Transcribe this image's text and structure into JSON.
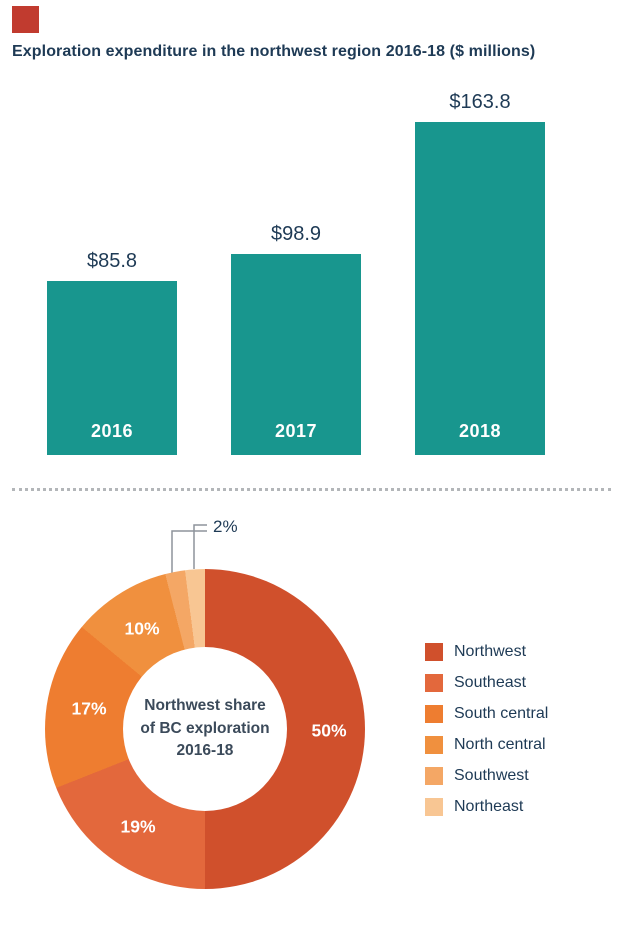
{
  "brand": {
    "logo_color": "#c13b2f",
    "navy": "#1e3a55",
    "teal": "#18968e"
  },
  "title": "Exploration expenditure in the northwest region 2016-18 ($ millions)",
  "chart_data": [
    {
      "type": "bar",
      "title": "Exploration expenditure in the northwest region 2016-18 ($ millions)",
      "categories": [
        "2016",
        "2017",
        "2018"
      ],
      "values": [
        85.8,
        98.9,
        163.8
      ],
      "value_labels": [
        "$85.8",
        "$98.9",
        "$163.8"
      ],
      "bar_color": "#18968e",
      "xlabel": "",
      "ylabel": "",
      "ylim": [
        0,
        170
      ],
      "grid": false,
      "legend_position": "none"
    },
    {
      "type": "pie",
      "style": "donut",
      "center_label_lines": [
        "Northwest share",
        "of BC exploration",
        "2016-18"
      ],
      "callout_label": "2%",
      "legend_position": "right",
      "segments": [
        {
          "label": "Northwest",
          "value": 50,
          "display": "50%",
          "color": "#d0502c"
        },
        {
          "label": "Southeast",
          "value": 19,
          "display": "19%",
          "color": "#e3683c"
        },
        {
          "label": "South central",
          "value": 17,
          "display": "17%",
          "color": "#ee7d30"
        },
        {
          "label": "North central",
          "value": 10,
          "display": "10%",
          "color": "#f0903e"
        },
        {
          "label": "Southwest",
          "value": 2,
          "display": "2%",
          "color": "#f4a765"
        },
        {
          "label": "Northeast",
          "value": 2,
          "display": "2%",
          "color": "#f8c693"
        }
      ]
    }
  ]
}
